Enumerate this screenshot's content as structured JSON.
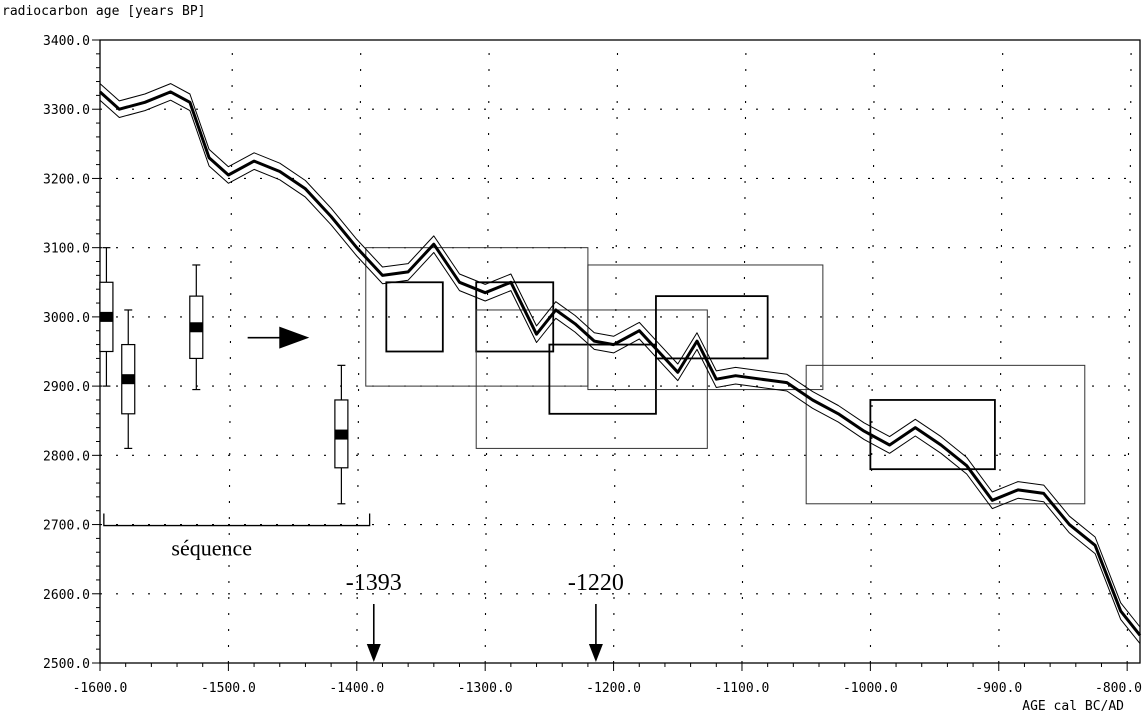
{
  "chart_data": {
    "type": "line",
    "ylabel": "radiocarbon age [years BP]",
    "xlabel": "AGE cal BC/AD",
    "xlim": [
      -1600,
      -790
    ],
    "ylim": [
      2500,
      3400
    ],
    "xticks": [
      -1600,
      -1500,
      -1400,
      -1300,
      -1200,
      -1100,
      -1000,
      -900,
      -800
    ],
    "xtick_labels": [
      "-1600.0",
      "-1500.0",
      "-1400.0",
      "-1300.0",
      "-1200.0",
      "-1100.0",
      "-1000.0",
      "-900.0",
      "-800.0"
    ],
    "yticks": [
      2500,
      2600,
      2700,
      2800,
      2900,
      3000,
      3100,
      3200,
      3300,
      3400
    ],
    "ytick_labels": [
      "2500.0",
      "2600.0",
      "2700.0",
      "2800.0",
      "2900.0",
      "3000.0",
      "3100.0",
      "3200.0",
      "3300.0",
      "3400.0"
    ],
    "grid": true,
    "calibration_curve": {
      "x": [
        -1600,
        -1585,
        -1565,
        -1545,
        -1530,
        -1515,
        -1500,
        -1480,
        -1460,
        -1440,
        -1420,
        -1400,
        -1380,
        -1360,
        -1340,
        -1320,
        -1300,
        -1280,
        -1260,
        -1245,
        -1230,
        -1215,
        -1200,
        -1180,
        -1165,
        -1150,
        -1135,
        -1120,
        -1105,
        -1085,
        -1065,
        -1045,
        -1025,
        -1005,
        -985,
        -965,
        -945,
        -925,
        -905,
        -885,
        -865,
        -845,
        -825,
        -805,
        -790
      ],
      "y": [
        3325,
        3300,
        3310,
        3325,
        3310,
        3230,
        3205,
        3225,
        3210,
        3185,
        3145,
        3100,
        3060,
        3065,
        3105,
        3050,
        3035,
        3050,
        2975,
        3010,
        2990,
        2965,
        2960,
        2980,
        2950,
        2920,
        2965,
        2910,
        2915,
        2910,
        2905,
        2880,
        2860,
        2835,
        2815,
        2840,
        2815,
        2785,
        2735,
        2750,
        2745,
        2700,
        2670,
        2575,
        2540
      ],
      "band": 12
    },
    "boxplots": [
      {
        "x": -1595,
        "median": 3000,
        "q1": 2950,
        "q3": 3050,
        "low": 2900,
        "high": 3100
      },
      {
        "x": -1578,
        "median": 2910,
        "q1": 2860,
        "q3": 2960,
        "low": 2810,
        "high": 3010
      },
      {
        "x": -1525,
        "median": 2985,
        "q1": 2940,
        "q3": 3030,
        "low": 2895,
        "high": 3075
      },
      {
        "x": -1412,
        "median": 2830,
        "q1": 2782,
        "q3": 2880,
        "low": 2730,
        "high": 2930
      }
    ],
    "rectangles": [
      {
        "x0": -1393,
        "x1": -1220,
        "y0": 2900,
        "y1": 3100,
        "style": "thin"
      },
      {
        "x0": -1377,
        "x1": -1333,
        "y0": 2950,
        "y1": 3050,
        "style": "thick"
      },
      {
        "x0": -1307,
        "x1": -1247,
        "y0": 2950,
        "y1": 3050,
        "style": "thick"
      },
      {
        "x0": -1307,
        "x1": -1127,
        "y0": 2810,
        "y1": 3010,
        "style": "thin"
      },
      {
        "x0": -1250,
        "x1": -1167,
        "y0": 2860,
        "y1": 2960,
        "style": "thick"
      },
      {
        "x0": -1220,
        "x1": -1037,
        "y0": 2895,
        "y1": 3075,
        "style": "thin"
      },
      {
        "x0": -1167,
        "x1": -1080,
        "y0": 2940,
        "y1": 3030,
        "style": "thick"
      },
      {
        "x0": -1050,
        "x1": -833,
        "y0": 2730,
        "y1": 2930,
        "style": "thin"
      },
      {
        "x0": -1000,
        "x1": -903,
        "y0": 2780,
        "y1": 2880,
        "style": "thick"
      }
    ],
    "annotations": {
      "sequence_label": "séquence",
      "sequence_range": [
        -1597,
        -1390
      ],
      "sequence_y": 2700,
      "arrow_right": {
        "x0": -1485,
        "x1": -1437,
        "y": 2970
      },
      "marker_1": {
        "label": "-1393",
        "x": -1393
      },
      "marker_2": {
        "label": "-1220",
        "x": -1220
      }
    }
  }
}
